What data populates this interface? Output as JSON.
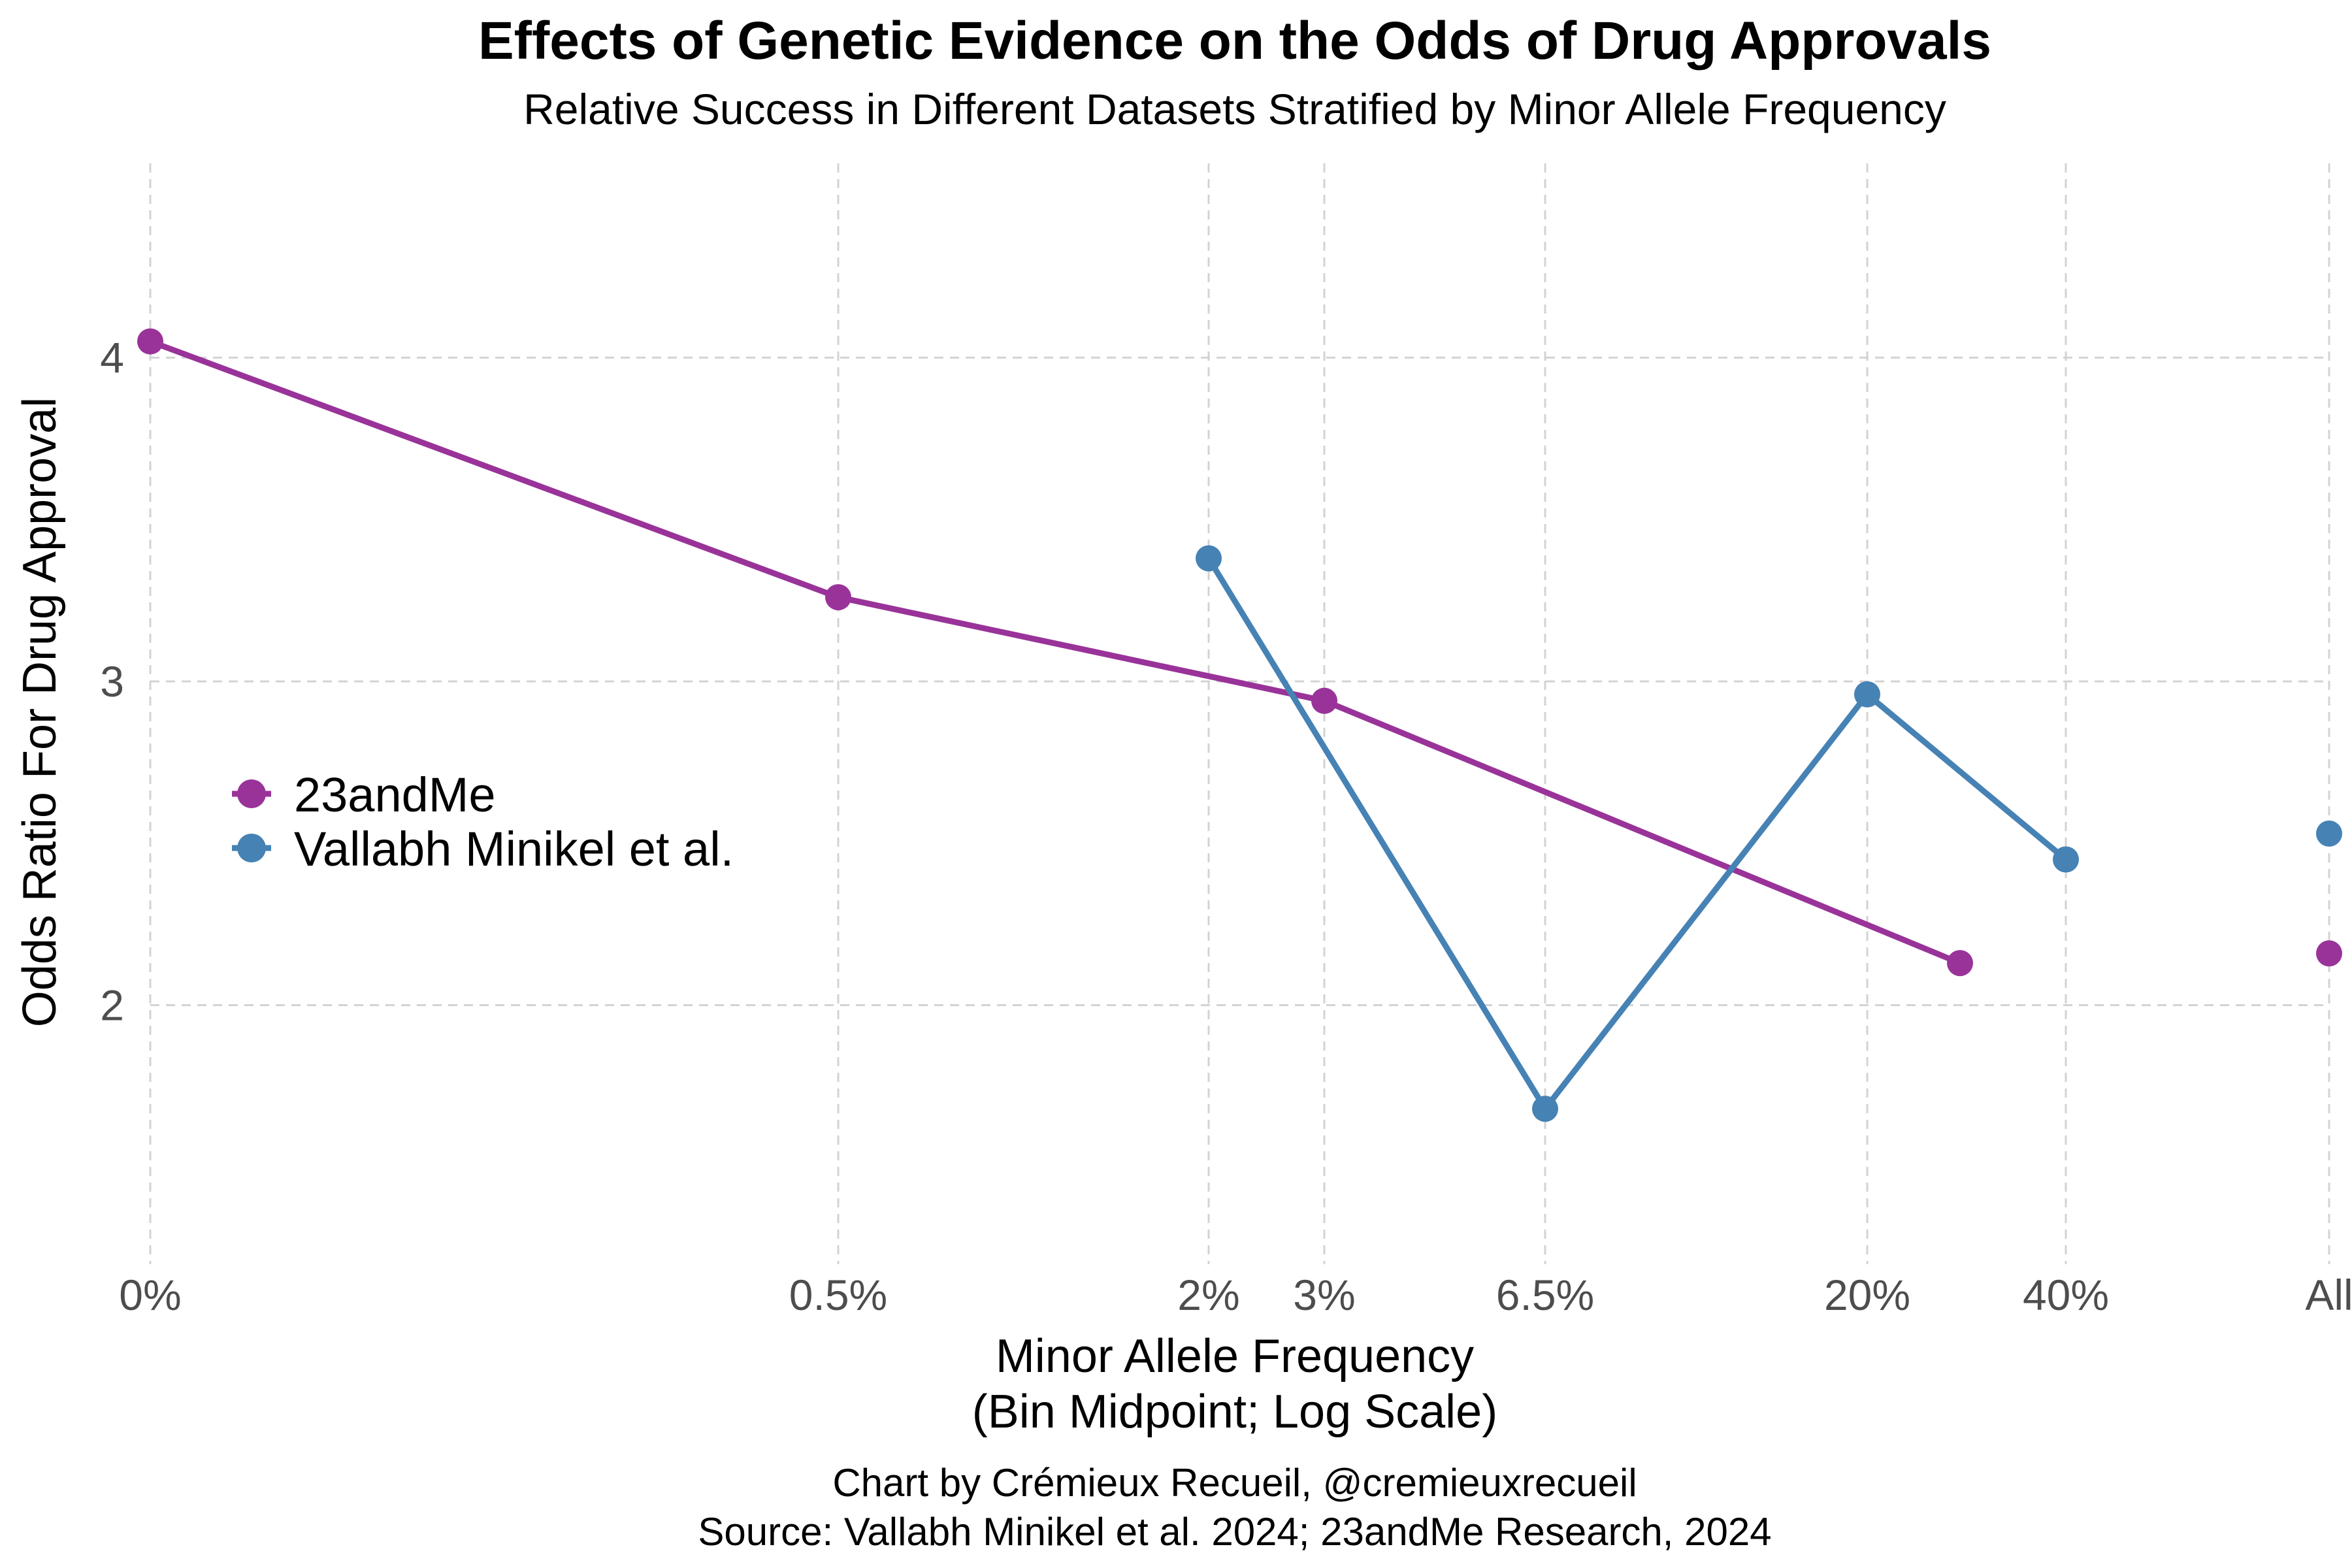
{
  "chart_data": {
    "type": "line",
    "title": "Effects of Genetic Evidence on the Odds of Drug Approvals",
    "subtitle": "Relative Success in Different Datasets Stratified by Minor Allele Frequency",
    "xlabel_line1": "Minor Allele Frequency",
    "xlabel_line2": "(Bin Midpoint; Log Scale)",
    "ylabel": "Odds Ratio For Drug Approval",
    "x_scale": "log",
    "x_ticks": [
      "0%",
      "0.5%",
      "2%",
      "3%",
      "6.5%",
      "20%",
      "40%",
      "All"
    ],
    "y_ticks": [
      "2",
      "3",
      "4"
    ],
    "ylim": [
      1.2,
      4.6
    ],
    "grid": true,
    "legend_position": "left",
    "series": [
      {
        "name": "23andMe",
        "color": "#993399",
        "points": [
          {
            "x": "0%",
            "y": 4.05
          },
          {
            "x": "0.5%",
            "y": 3.26
          },
          {
            "x": "3%",
            "y": 2.94
          },
          {
            "x": "25%",
            "y": 2.13
          }
        ],
        "overall": {
          "x": "All",
          "y": 2.16
        }
      },
      {
        "name": "Vallabh Minikel et al.",
        "color": "#4682b4",
        "points": [
          {
            "x": "2%",
            "y": 3.38
          },
          {
            "x": "6.5%",
            "y": 1.68
          },
          {
            "x": "20%",
            "y": 2.96
          },
          {
            "x": "40%",
            "y": 2.45
          }
        ],
        "overall": {
          "x": "All",
          "y": 2.53
        }
      }
    ],
    "caption_line1": "Chart by Crémieux Recueil, @cremieuxrecueil",
    "caption_line2": "Source: Vallabh Minikel et al. 2024; 23andMe Research, 2024"
  }
}
